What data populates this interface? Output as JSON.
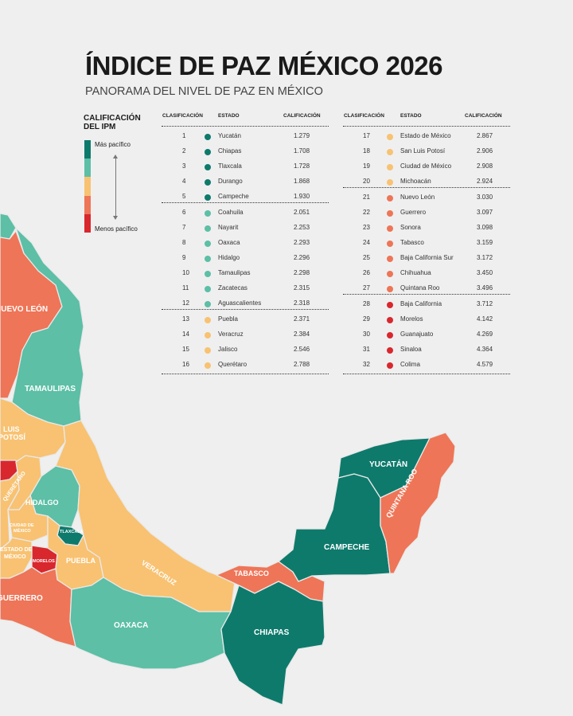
{
  "header": {
    "title": "ÍNDICE DE PAZ MÉXICO 2026",
    "subtitle": "PANORAMA DEL NIVEL DE PAZ EN MÉXICO"
  },
  "legend": {
    "title_line1": "CALIFICACIÓN",
    "title_line2": "DEL IPM",
    "top_label": "Más pacífico",
    "bottom_label": "Menos pacífico",
    "colors": [
      "#0e7a6c",
      "#5cbfa6",
      "#f8c272",
      "#ee7557",
      "#d9272e"
    ]
  },
  "table": {
    "headers": {
      "rank": "CLASIFICACIÓN",
      "state": "ESTADO",
      "score": "CALIFICACIÓN"
    },
    "rows": [
      {
        "rank": "1",
        "state": "Yucatán",
        "score": "1.279",
        "color": "#0e7a6c"
      },
      {
        "rank": "2",
        "state": "Chiapas",
        "score": "1.708",
        "color": "#0e7a6c"
      },
      {
        "rank": "3",
        "state": "Tlaxcala",
        "score": "1.728",
        "color": "#0e7a6c"
      },
      {
        "rank": "4",
        "state": "Durango",
        "score": "1.868",
        "color": "#0e7a6c"
      },
      {
        "rank": "5",
        "state": "Campeche",
        "score": "1.930",
        "color": "#0e7a6c"
      },
      {
        "rank": "6",
        "state": "Coahuila",
        "score": "2.051",
        "color": "#5cbfa6"
      },
      {
        "rank": "7",
        "state": "Nayarit",
        "score": "2.253",
        "color": "#5cbfa6"
      },
      {
        "rank": "8",
        "state": "Oaxaca",
        "score": "2.293",
        "color": "#5cbfa6"
      },
      {
        "rank": "9",
        "state": "Hidalgo",
        "score": "2.296",
        "color": "#5cbfa6"
      },
      {
        "rank": "10",
        "state": "Tamaulipas",
        "score": "2.298",
        "color": "#5cbfa6"
      },
      {
        "rank": "11",
        "state": "Zacatecas",
        "score": "2.315",
        "color": "#5cbfa6"
      },
      {
        "rank": "12",
        "state": "Aguascalientes",
        "score": "2.318",
        "color": "#5cbfa6"
      },
      {
        "rank": "13",
        "state": "Puebla",
        "score": "2.371",
        "color": "#f8c272"
      },
      {
        "rank": "14",
        "state": "Veracruz",
        "score": "2.384",
        "color": "#f8c272"
      },
      {
        "rank": "15",
        "state": "Jalisco",
        "score": "2.546",
        "color": "#f8c272"
      },
      {
        "rank": "16",
        "state": "Querétaro",
        "score": "2.788",
        "color": "#f8c272"
      },
      {
        "rank": "17",
        "state": "Estado de México",
        "score": "2.867",
        "color": "#f8c272"
      },
      {
        "rank": "18",
        "state": "San Luis Potosí",
        "score": "2.906",
        "color": "#f8c272"
      },
      {
        "rank": "19",
        "state": "Ciudad de México",
        "score": "2.908",
        "color": "#f8c272"
      },
      {
        "rank": "20",
        "state": "Michoacán",
        "score": "2.924",
        "color": "#f8c272"
      },
      {
        "rank": "21",
        "state": "Nuevo León",
        "score": "3.030",
        "color": "#ee7557"
      },
      {
        "rank": "22",
        "state": "Guerrero",
        "score": "3.097",
        "color": "#ee7557"
      },
      {
        "rank": "23",
        "state": "Sonora",
        "score": "3.098",
        "color": "#ee7557"
      },
      {
        "rank": "24",
        "state": "Tabasco",
        "score": "3.159",
        "color": "#ee7557"
      },
      {
        "rank": "25",
        "state": "Baja California Sur",
        "score": "3.172",
        "color": "#ee7557"
      },
      {
        "rank": "26",
        "state": "Chihuahua",
        "score": "3.450",
        "color": "#ee7557"
      },
      {
        "rank": "27",
        "state": "Quintana Roo",
        "score": "3.496",
        "color": "#ee7557"
      },
      {
        "rank": "28",
        "state": "Baja California",
        "score": "3.712",
        "color": "#d9272e"
      },
      {
        "rank": "29",
        "state": "Morelos",
        "score": "4.142",
        "color": "#d9272e"
      },
      {
        "rank": "30",
        "state": "Guanajuato",
        "score": "4.269",
        "color": "#d9272e"
      },
      {
        "rank": "31",
        "state": "Sinaloa",
        "score": "4.364",
        "color": "#d9272e"
      },
      {
        "rank": "32",
        "state": "Colima",
        "score": "4.579",
        "color": "#d9272e"
      }
    ]
  },
  "map_labels": {
    "nuevo_leon": "NUEVO LEÓN",
    "tamaulipas": "TAMAULIPAS",
    "slp_line1": "LUIS",
    "slp_line2": "POTOSÍ",
    "queretaro": "QUERÉTARO",
    "hidalgo": "HIDALGO",
    "cdmx_line1": "CIUDAD DE",
    "cdmx_line2": "MÉXICO",
    "tlaxcala": "TLAXCALA",
    "edomex_line1": "ESTADO DE",
    "edomex_line2": "MÉXICO",
    "morelos": "MORELOS",
    "puebla": "PUEBLA",
    "veracruz": "VERACRUZ",
    "guerrero": "GUERRERO",
    "oaxaca": "OAXACA",
    "chiapas": "CHIAPAS",
    "tabasco": "TABASCO",
    "campeche": "CAMPECHE",
    "yucatan": "YUCATÁN",
    "quintana_roo": "QUINTANA ROO"
  }
}
